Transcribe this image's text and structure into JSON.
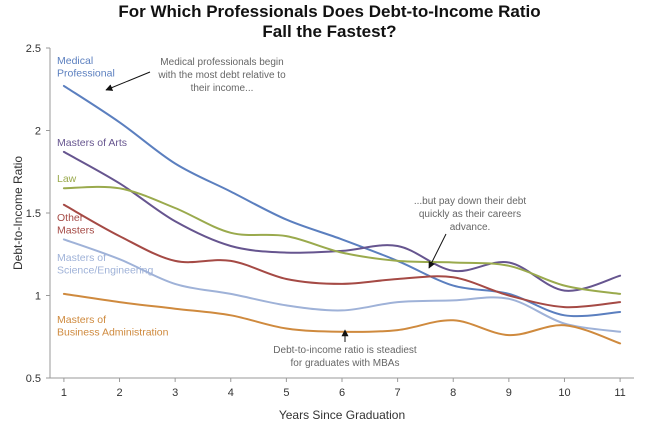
{
  "chart_data": {
    "type": "line",
    "title": [
      "For Which Professionals Does Debt-to-Income Ratio",
      "Fall the Fastest?"
    ],
    "xlabel": "Years Since Graduation",
    "ylabel": "Debt-to-Income Ratio",
    "x": [
      1,
      2,
      3,
      4,
      5,
      6,
      7,
      8,
      9,
      10,
      11
    ],
    "xlim": [
      0.75,
      11.25
    ],
    "ylim": [
      0.5,
      2.5
    ],
    "yticks": [
      0.5,
      1,
      1.5,
      2,
      2.5
    ],
    "grid": false,
    "series": [
      {
        "name": "Medical Professional",
        "color": "#5b7fbf",
        "label_lines": [
          "Medical",
          "Professional"
        ],
        "values": [
          2.27,
          2.05,
          1.8,
          1.63,
          1.46,
          1.34,
          1.21,
          1.06,
          1.01,
          0.88,
          0.9
        ]
      },
      {
        "name": "Masters of Arts",
        "color": "#66558f",
        "label_lines": [
          "Masters of Arts"
        ],
        "values": [
          1.87,
          1.68,
          1.45,
          1.3,
          1.26,
          1.27,
          1.3,
          1.15,
          1.2,
          1.03,
          1.12
        ]
      },
      {
        "name": "Law",
        "color": "#9aaa4d",
        "label_lines": [
          "Law"
        ],
        "values": [
          1.65,
          1.65,
          1.53,
          1.38,
          1.36,
          1.26,
          1.21,
          1.2,
          1.18,
          1.06,
          1.01
        ]
      },
      {
        "name": "Other Masters",
        "color": "#a54a45",
        "label_lines": [
          "Other",
          "Masters"
        ],
        "values": [
          1.55,
          1.36,
          1.21,
          1.21,
          1.1,
          1.07,
          1.1,
          1.11,
          1.0,
          0.93,
          0.96
        ]
      },
      {
        "name": "Masters of Science/Engineering",
        "color": "#9fb2d8",
        "label_lines": [
          "Masters of",
          "Science/Engineering"
        ],
        "values": [
          1.34,
          1.22,
          1.07,
          1.01,
          0.94,
          0.91,
          0.96,
          0.97,
          0.98,
          0.83,
          0.78
        ]
      },
      {
        "name": "Masters of Business Administration",
        "color": "#cf8a3e",
        "label_lines": [
          "Masters of",
          "Business Administration"
        ],
        "values": [
          1.01,
          0.96,
          0.92,
          0.88,
          0.8,
          0.78,
          0.79,
          0.85,
          0.76,
          0.82,
          0.71
        ]
      }
    ],
    "annotations": [
      {
        "lines": [
          "Medical professionals begin",
          "with the most debt relative to",
          "their income..."
        ]
      },
      {
        "lines": [
          "...but pay down their debt",
          "quickly as their careers",
          "advance."
        ]
      },
      {
        "lines": [
          "Debt-to-income ratio is steadiest",
          "for graduates with MBAs"
        ]
      }
    ]
  }
}
